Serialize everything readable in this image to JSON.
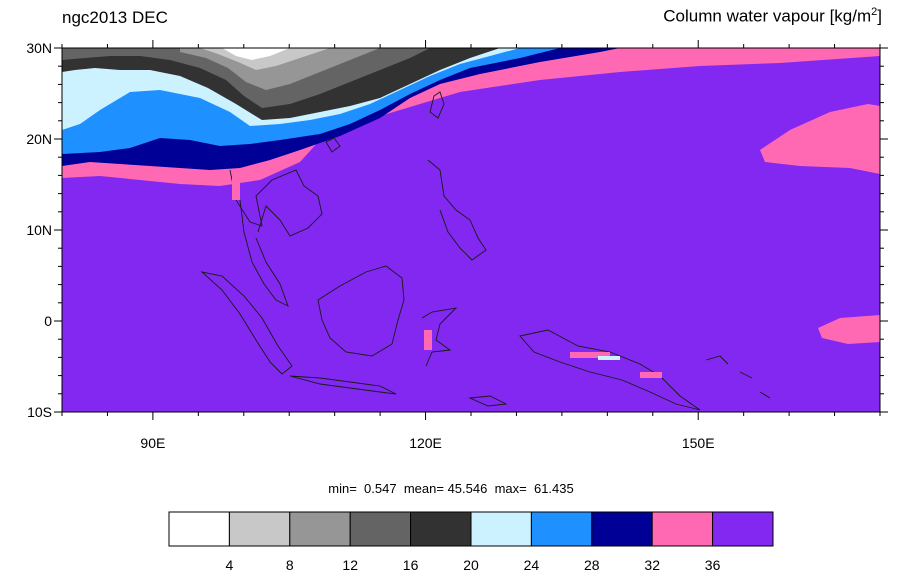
{
  "title": {
    "left": "ngc2013 DEC",
    "right_main": "Column water vapour [kg/m",
    "right_sup": "2",
    "right_close": "]"
  },
  "map": {
    "lon_range": [
      80,
      170
    ],
    "lat_range": [
      -10,
      30
    ],
    "lat_labels": [
      "30N",
      "20N",
      "10N",
      "0",
      "10S"
    ],
    "lon_labels": [
      "90E",
      "120E",
      "150E"
    ]
  },
  "stats": {
    "min_label": "min=",
    "min": "0.547",
    "mean_label": "mean=",
    "mean": "45.546",
    "max_label": "max=",
    "max": "61.435"
  },
  "colorbar": {
    "colors": [
      "#ffffff",
      "#c8c8c8",
      "#969696",
      "#646464",
      "#323232",
      "#cdf2ff",
      "#1e90ff",
      "#000096",
      "#ff69b4",
      "#8228f0"
    ],
    "labels": [
      "4",
      "8",
      "12",
      "16",
      "20",
      "24",
      "28",
      "32",
      "36"
    ]
  },
  "palette": {
    "ocean": "#8228f0",
    "pink": "#ff69b4",
    "navy": "#000096",
    "blue": "#1e90ff",
    "light_blue": "#cdf2ff",
    "dark_gray": "#323232",
    "mid_gray": "#646464",
    "gray": "#969696",
    "light_gray": "#c8c8c8"
  }
}
